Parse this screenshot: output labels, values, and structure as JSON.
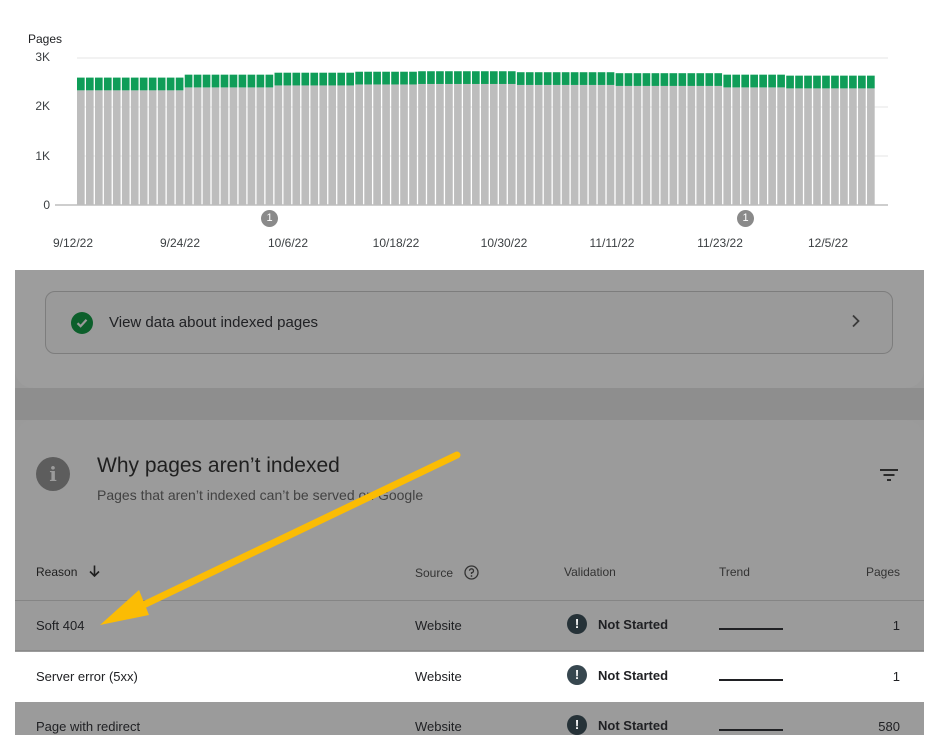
{
  "chart": {
    "y_axis_label": "Pages",
    "y_ticks": [
      "3K",
      "2K",
      "1K",
      "0"
    ],
    "x_ticks": [
      "9/12/22",
      "9/24/22",
      "10/6/22",
      "10/18/22",
      "10/30/22",
      "11/11/22",
      "11/23/22",
      "12/5/22"
    ],
    "annotations": [
      "1",
      "1"
    ],
    "colors": {
      "indexed": "#bdbdbd",
      "not_indexed": "#0f9d58"
    }
  },
  "chart_data": {
    "type": "bar",
    "title": "",
    "xlabel": "",
    "ylabel": "Pages",
    "ylim": [
      0,
      3000
    ],
    "x_tick_labels": [
      "9/12/22",
      "9/24/22",
      "10/6/22",
      "10/18/22",
      "10/30/22",
      "11/11/22",
      "11/23/22",
      "12/5/22"
    ],
    "stacked": true,
    "series": [
      {
        "name": "",
        "color": "#bdbdbd",
        "values": [
          2340,
          2340,
          2340,
          2340,
          2340,
          2340,
          2340,
          2340,
          2340,
          2340,
          2340,
          2340,
          2400,
          2400,
          2400,
          2400,
          2400,
          2400,
          2400,
          2400,
          2400,
          2400,
          2440,
          2440,
          2440,
          2440,
          2440,
          2440,
          2440,
          2440,
          2440,
          2460,
          2460,
          2460,
          2460,
          2460,
          2460,
          2460,
          2470,
          2470,
          2470,
          2470,
          2470,
          2470,
          2470,
          2470,
          2470,
          2470,
          2470,
          2450,
          2450,
          2450,
          2450,
          2450,
          2450,
          2450,
          2450,
          2450,
          2450,
          2450,
          2430,
          2430,
          2430,
          2430,
          2430,
          2430,
          2430,
          2430,
          2430,
          2430,
          2430,
          2430,
          2400,
          2400,
          2400,
          2400,
          2400,
          2400,
          2400,
          2380,
          2380,
          2380,
          2380,
          2380,
          2380,
          2380,
          2380,
          2380,
          2380
        ]
      },
      {
        "name": "",
        "color": "#0f9d58",
        "values": [
          260,
          260,
          260,
          260,
          260,
          260,
          260,
          260,
          260,
          260,
          260,
          260,
          260,
          260,
          260,
          260,
          260,
          260,
          260,
          260,
          260,
          260,
          260,
          260,
          260,
          260,
          260,
          260,
          260,
          260,
          260,
          260,
          260,
          260,
          260,
          260,
          260,
          260,
          260,
          260,
          260,
          260,
          260,
          260,
          260,
          260,
          260,
          260,
          260,
          260,
          260,
          260,
          260,
          260,
          260,
          260,
          260,
          260,
          260,
          260,
          260,
          260,
          260,
          260,
          260,
          260,
          260,
          260,
          260,
          260,
          260,
          260,
          260,
          260,
          260,
          260,
          260,
          260,
          260,
          260,
          260,
          260,
          260,
          260,
          260,
          260,
          260,
          260,
          260
        ]
      }
    ]
  },
  "indexed": {
    "label": "View data about indexed pages"
  },
  "not_indexed": {
    "title": "Why pages aren’t indexed",
    "subtitle": "Pages that aren’t indexed can’t be served on Google",
    "columns": {
      "reason": "Reason",
      "source": "Source",
      "validation": "Validation",
      "trend": "Trend",
      "pages": "Pages"
    },
    "rows": [
      {
        "reason": "Soft 404",
        "source": "Website",
        "validation": "Not Started",
        "pages": "1"
      },
      {
        "reason": "Server error (5xx)",
        "source": "Website",
        "validation": "Not Started",
        "pages": "1"
      },
      {
        "reason": "Page with redirect",
        "source": "Website",
        "validation": "Not Started",
        "pages": "580"
      }
    ]
  },
  "icons": {
    "check": "check-circle-icon",
    "chevron": "chevron-right-icon",
    "info": "info-icon",
    "filter": "filter-icon",
    "help": "help-icon",
    "sort": "arrow-down-icon",
    "exclamation": "exclamation-icon"
  },
  "colors": {
    "arrow": "#fbbc04",
    "dim_overlay": "#9b9b9b"
  }
}
